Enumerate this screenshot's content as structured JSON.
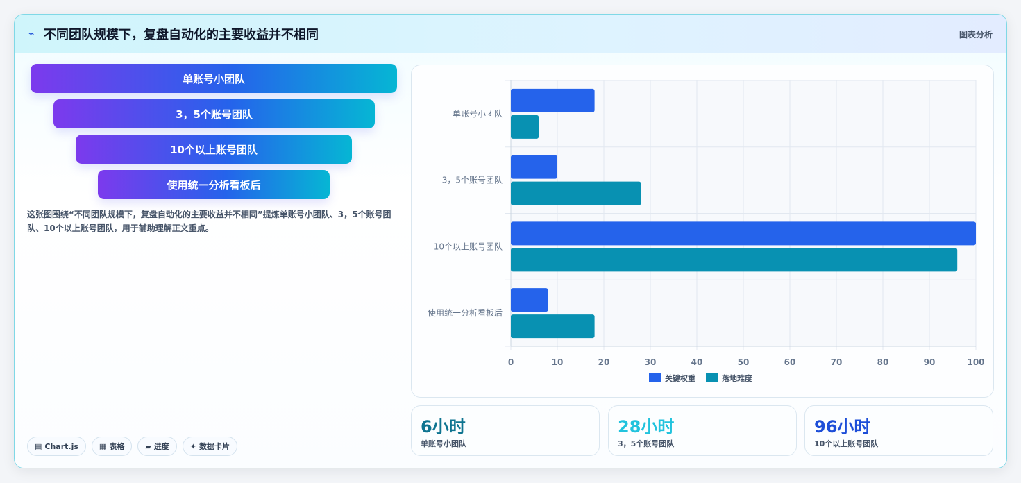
{
  "header": {
    "icon": "chart-line-icon",
    "title": "不同团队规模下，复盘自动化的主要收益并不相同",
    "tag": "图表分析"
  },
  "funnel": {
    "items": [
      {
        "label": "单账号小团队"
      },
      {
        "label": "3，5个账号团队"
      },
      {
        "label": "10个以上账号团队"
      },
      {
        "label": "使用统一分析看板后"
      }
    ],
    "gradient": [
      "#7c3aed",
      "#2563eb",
      "#06b6d4"
    ]
  },
  "description": "这张图围绕“不同团队规模下，复盘自动化的主要收益并不相同”提炼单账号小团队、3，5个账号团队、10个以上账号团队，用于辅助理解正文重点。",
  "chips": [
    {
      "icon": "chart-icon",
      "glyph": "▤",
      "label": "Chart.js"
    },
    {
      "icon": "table-icon",
      "glyph": "▦",
      "label": "表格"
    },
    {
      "icon": "progress-icon",
      "glyph": "▰",
      "label": "进度"
    },
    {
      "icon": "sparkle-icon",
      "glyph": "✦",
      "label": "数据卡片"
    }
  ],
  "chart_data": {
    "type": "bar",
    "orientation": "horizontal",
    "categories": [
      "单账号小团队",
      "3，5个账号团队",
      "10个以上账号团队",
      "使用统一分析看板后"
    ],
    "series": [
      {
        "name": "关键权重",
        "color": "#2563eb",
        "values": [
          18,
          10,
          100,
          8
        ]
      },
      {
        "name": "落地难度",
        "color": "#0891b2",
        "values": [
          6,
          28,
          96,
          18
        ]
      }
    ],
    "xlim": [
      0,
      100
    ],
    "xticks": [
      0,
      10,
      20,
      30,
      40,
      50,
      60,
      70,
      80,
      90,
      100
    ],
    "grid": true,
    "legend": "bottom"
  },
  "stats": [
    {
      "value": "6小时",
      "label": "单账号小团队",
      "color": "#0e7490"
    },
    {
      "value": "28小时",
      "label": "3，5个账号团队",
      "color": "#22c3dd"
    },
    {
      "value": "96小时",
      "label": "10个以上账号团队",
      "color": "#1d4ed8"
    }
  ]
}
